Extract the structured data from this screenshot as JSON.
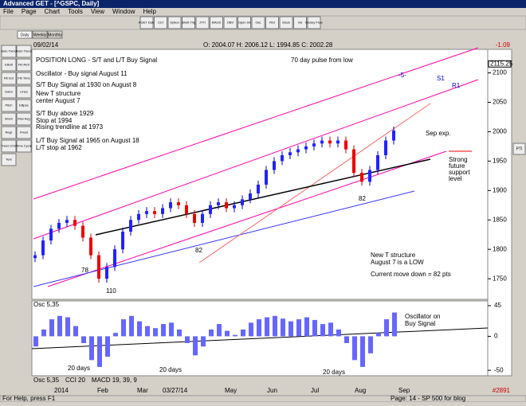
{
  "window": {
    "title": "Advanced GET - [^GSPC, Daily]"
  },
  "menu": [
    "File",
    "Page",
    "Chart",
    "Tools",
    "View",
    "Window",
    "Help"
  ],
  "toolbar": [
    "AGET Data",
    "CCI",
    "Option",
    "Elliott Trig",
    "JTTI",
    "MACD",
    "OBV",
    "Open Int",
    "Osc",
    "RSI",
    "Stock",
    "Vol",
    "Money Flow"
  ],
  "tabs": [
    "Daily",
    "Weekly",
    "Monthly"
  ],
  "left_tools": [
    "Auto Trend",
    "Auto Trend",
    "Elliott",
    "Fib Retr",
    "Fib Ext",
    "Fib Time",
    "Gann",
    "Lines",
    "Pitch",
    "Ellipse",
    "Stoch",
    "Mov Avg",
    "Regr",
    "Fixed",
    "Trend Chnl",
    "Time Cycle",
    "Text"
  ],
  "right_tools": [
    "PTI"
  ],
  "info": {
    "date": "09/02/14",
    "ohlc": "O: 2004.07   H: 2006.12   L: 1994.85   C: 2002.28",
    "change": "-1.09"
  },
  "price_axis": {
    "ylim": [
      1715,
      2140
    ],
    "yticks": [
      1750,
      1800,
      1850,
      1900,
      1950,
      2000,
      2050,
      2100
    ],
    "last": 2115.25
  },
  "price": {
    "closes": [
      1790,
      1815,
      1835,
      1845,
      1850,
      1840,
      1820,
      1790,
      1750,
      1770,
      1800,
      1830,
      1850,
      1860,
      1865,
      1860,
      1870,
      1880,
      1875,
      1860,
      1845,
      1860,
      1875,
      1880,
      1870,
      1875,
      1885,
      1895,
      1910,
      1935,
      1950,
      1960,
      1965,
      1970,
      1975,
      1980,
      1985,
      1980,
      1985,
      1970,
      1930,
      1915,
      1935,
      1960,
      1985,
      2002
    ]
  },
  "annotations": [
    "POSITION LONG - S/T and L/T Buy Signal",
    "Oscillator - Buy signal August 11",
    "S/T Buy Signal at 1930 on August 8",
    "New T structure",
    "center August 7",
    "S/T Buy above 1929",
    "Stop at 1994",
    "Rising trendline at 1973",
    "L/T Buy Signal at 1965 on August 18",
    "L/T stop at 1962",
    "70 day pulse from low",
    "S1",
    "R1",
    "Sep exp.",
    "Strong",
    "future",
    "support",
    "level",
    "New T structure",
    "August 7 is a LOW",
    "Current move down = 82 pts",
    "78",
    "110",
    "82",
    "82",
    "-5-"
  ],
  "oscillator": {
    "label": "Osc 5,35",
    "ylim": [
      -58,
      52
    ],
    "yticks": [
      45,
      0,
      -50
    ],
    "values": [
      -15,
      10,
      25,
      30,
      28,
      15,
      -10,
      -35,
      -45,
      -30,
      5,
      25,
      30,
      22,
      15,
      12,
      18,
      20,
      10,
      -10,
      -28,
      -15,
      10,
      18,
      8,
      2,
      10,
      20,
      25,
      28,
      30,
      26,
      22,
      25,
      28,
      24,
      18,
      20,
      10,
      -10,
      -35,
      -45,
      -25,
      5,
      25,
      35
    ],
    "annotations": [
      "Oscillator on",
      "Buy Signal",
      "20 days",
      "20 days",
      "20 days"
    ]
  },
  "study_tabs": [
    "Osc 5,35",
    "CCI 20",
    "MACD 19, 39, 9"
  ],
  "date_axis": [
    "2014",
    "Feb",
    "Mar",
    "03/27/14",
    "May",
    "Jun",
    "Jul",
    "Aug",
    "Sep"
  ],
  "bar_count": "#2891",
  "status": {
    "left": "For Help, press F1",
    "right": "Page: 14 - SP 500 for blog"
  }
}
